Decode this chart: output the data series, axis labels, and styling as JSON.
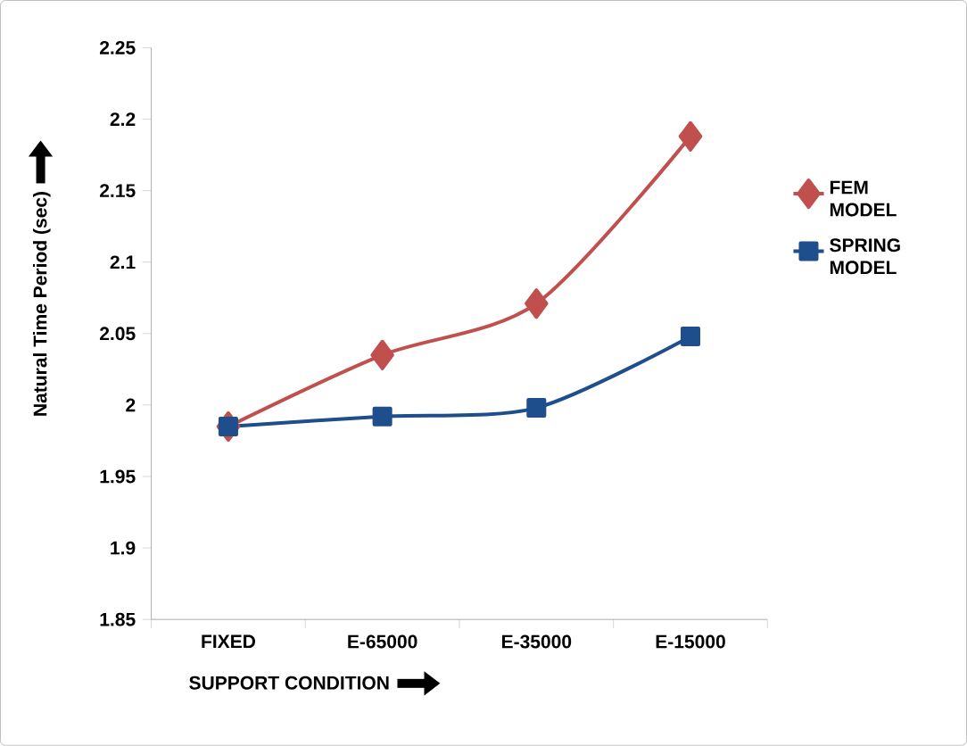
{
  "chart_data": {
    "type": "line",
    "xlabel": "SUPPORT CONDITION",
    "ylabel": "Natural Time Period (sec)",
    "categories": [
      "FIXED",
      "E-65000",
      "E-35000",
      "E-15000"
    ],
    "series": [
      {
        "name": "FEM MODEL",
        "color": "#c0504d",
        "marker": "diamond",
        "values": [
          1.985,
          2.035,
          2.071,
          2.188
        ]
      },
      {
        "name": "SPRING MODEL",
        "color": "#1f4e8c",
        "marker": "square",
        "values": [
          1.985,
          1.992,
          1.998,
          2.048
        ]
      }
    ],
    "ylim": [
      1.85,
      2.25
    ],
    "yticks": [
      1.85,
      1.9,
      1.95,
      2,
      2.05,
      2.1,
      2.15,
      2.2,
      2.25
    ],
    "legend": "right",
    "line_style": "solid",
    "grid": false
  }
}
